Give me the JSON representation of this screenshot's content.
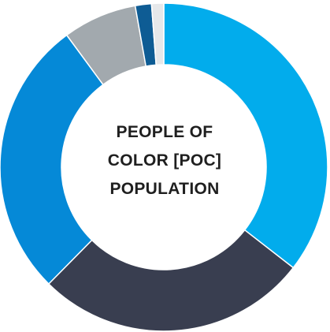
{
  "chart_data": {
    "type": "pie",
    "variant": "donut",
    "title_lines": [
      "PEOPLE OF",
      "COLOR [POC]",
      "POPULATION"
    ],
    "slices": [
      {
        "value": 35.5,
        "color": "#02acec"
      },
      {
        "value": 26.9,
        "color": "#393e50"
      },
      {
        "value": 27.5,
        "color": "#0589d7"
      },
      {
        "value": 7.3,
        "color": "#a2a9ae"
      },
      {
        "value": 1.6,
        "color": "#0e5c94"
      },
      {
        "value": 1.2,
        "color": "#e6e8ea"
      }
    ]
  }
}
